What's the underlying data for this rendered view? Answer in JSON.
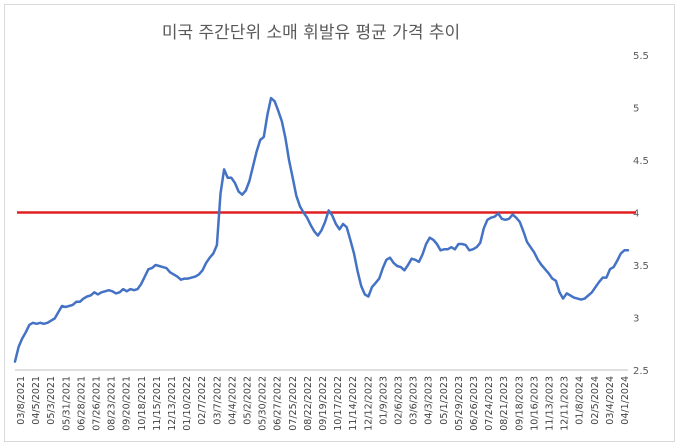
{
  "chart_data": {
    "type": "line",
    "title": "미국 주간단위 소매 휘발유 평균 가격 추이",
    "xlabel": "",
    "ylabel": "",
    "ylim": [
      2.5,
      5.5
    ],
    "y_ticks": [
      "2.5",
      "3",
      "3.5",
      "4",
      "4.5",
      "5",
      "5.5"
    ],
    "y_axis_side": "right",
    "x_tick_labels": [
      "03/8/2021",
      "04/5/2021",
      "05/3/2021",
      "05/31/2021",
      "06/28/2021",
      "07/26/2021",
      "08/23/2021",
      "09/20/2021",
      "10/18/2021",
      "11/15/2021",
      "12/13/2021",
      "01/10/2022",
      "02/7/2022",
      "03/7/2022",
      "04/4/2022",
      "05/2/2022",
      "05/30/2022",
      "06/27/2022",
      "07/25/2022",
      "08/22/2022",
      "09/19/2022",
      "10/17/2022",
      "11/14/2022",
      "12/12/2022",
      "01/9/2023",
      "02/6/2023",
      "03/6/2023",
      "04/3/2023",
      "05/1/2023",
      "05/29/2023",
      "06/26/2023",
      "07/24/2023",
      "08/21/2023",
      "09/18/2023",
      "10/16/2023",
      "11/13/2023",
      "12/11/2023",
      "01/8/2024",
      "02/5/2024",
      "03/4/2024",
      "04/1/2024"
    ],
    "series": [
      {
        "color": "#4472c4",
        "values": [
          2.58,
          2.72,
          2.8,
          2.86,
          2.93,
          2.95,
          2.94,
          2.95,
          2.94,
          2.95,
          2.97,
          2.99,
          3.05,
          3.11,
          3.1,
          3.11,
          3.12,
          3.15,
          3.15,
          3.18,
          3.2,
          3.21,
          3.24,
          3.22,
          3.24,
          3.25,
          3.26,
          3.25,
          3.23,
          3.24,
          3.27,
          3.25,
          3.27,
          3.26,
          3.27,
          3.32,
          3.39,
          3.46,
          3.47,
          3.5,
          3.49,
          3.48,
          3.47,
          3.43,
          3.41,
          3.39,
          3.36,
          3.37,
          3.37,
          3.38,
          3.39,
          3.41,
          3.45,
          3.52,
          3.57,
          3.61,
          3.69,
          4.18,
          4.41,
          4.33,
          4.33,
          4.28,
          4.2,
          4.17,
          4.21,
          4.3,
          4.44,
          4.58,
          4.69,
          4.72,
          4.93,
          5.09,
          5.06,
          4.97,
          4.87,
          4.71,
          4.5,
          4.33,
          4.16,
          4.06,
          4.0,
          3.95,
          3.88,
          3.82,
          3.78,
          3.83,
          3.91,
          4.02,
          3.97,
          3.89,
          3.84,
          3.89,
          3.86,
          3.74,
          3.61,
          3.44,
          3.3,
          3.22,
          3.2,
          3.29,
          3.33,
          3.37,
          3.47,
          3.55,
          3.57,
          3.52,
          3.49,
          3.48,
          3.45,
          3.5,
          3.56,
          3.55,
          3.53,
          3.6,
          3.7,
          3.76,
          3.74,
          3.7,
          3.64,
          3.65,
          3.65,
          3.67,
          3.65,
          3.7,
          3.7,
          3.69,
          3.64,
          3.65,
          3.67,
          3.71,
          3.85,
          3.93,
          3.95,
          3.96,
          3.99,
          3.94,
          3.93,
          3.94,
          3.98,
          3.95,
          3.91,
          3.82,
          3.72,
          3.67,
          3.62,
          3.55,
          3.5,
          3.46,
          3.42,
          3.37,
          3.35,
          3.24,
          3.18,
          3.23,
          3.21,
          3.19,
          3.18,
          3.17,
          3.18,
          3.21,
          3.24,
          3.29,
          3.34,
          3.38,
          3.38,
          3.46,
          3.48,
          3.54,
          3.61,
          3.64,
          3.64
        ]
      }
    ],
    "reference_lines": [
      {
        "y": 4,
        "color": "#e02020"
      }
    ],
    "grid": false,
    "legend": "none"
  }
}
